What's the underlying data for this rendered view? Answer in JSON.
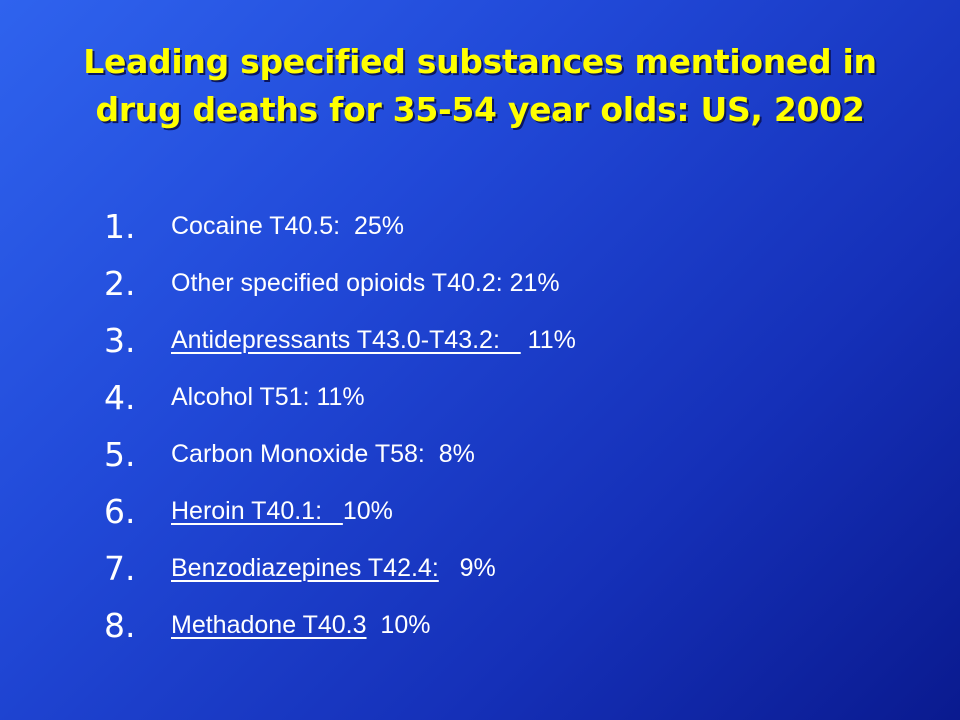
{
  "slide": {
    "title_line1": "Leading specified substances mentioned in",
    "title_line2": "drug deaths for 35-54 year olds: US, 2002",
    "items": [
      {
        "number": "1.",
        "label": "Cocaine T40.5:  ",
        "value": "25%",
        "underlined": false
      },
      {
        "number": "2.",
        "label": "Other specified opioids T40.2: ",
        "value": "21%",
        "underlined": false
      },
      {
        "number": "3.",
        "label": "Antidepressants T43.0-T43.2:   ",
        "value": " 11%",
        "underlined": true
      },
      {
        "number": "4.",
        "label": "Alcohol T51: ",
        "value": "11%",
        "underlined": false
      },
      {
        "number": "5.",
        "label": "Carbon Monoxide T58:  ",
        "value": "8%",
        "underlined": false
      },
      {
        "number": "6.",
        "label": "Heroin T40.1:   ",
        "value": "10%",
        "underlined": true
      },
      {
        "number": "7.",
        "label": "Benzodiazepines T42.4:",
        "value": "   9%",
        "underlined": true
      },
      {
        "number": "8.",
        "label": "Methadone T40.3",
        "value": "  10%",
        "underlined": true
      }
    ]
  }
}
